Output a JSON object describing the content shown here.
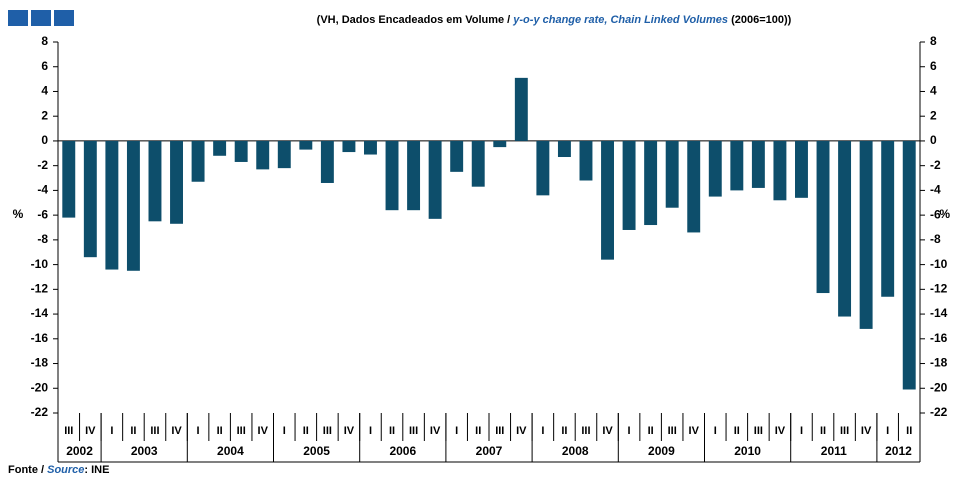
{
  "chart_data": {
    "type": "bar",
    "subtitle": {
      "part1": "(VH, Dados Encadeados em Volume / ",
      "part2": "y-o-y change rate, Chain Linked Volumes",
      "part3": " (2006=100))"
    },
    "y_label": "%",
    "groups": [
      {
        "label": "2002",
        "categories": [
          "III",
          "IV"
        ]
      },
      {
        "label": "2003",
        "categories": [
          "I",
          "II",
          "III",
          "IV"
        ]
      },
      {
        "label": "2004",
        "categories": [
          "I",
          "II",
          "III",
          "IV"
        ]
      },
      {
        "label": "2005",
        "categories": [
          "I",
          "II",
          "III",
          "IV"
        ]
      },
      {
        "label": "2006",
        "categories": [
          "I",
          "II",
          "III",
          "IV"
        ]
      },
      {
        "label": "2007",
        "categories": [
          "I",
          "II",
          "III",
          "IV"
        ]
      },
      {
        "label": "2008",
        "categories": [
          "I",
          "II",
          "III",
          "IV"
        ]
      },
      {
        "label": "2009",
        "categories": [
          "I",
          "II",
          "III",
          "IV"
        ]
      },
      {
        "label": "2010",
        "categories": [
          "I",
          "II",
          "III",
          "IV"
        ]
      },
      {
        "label": "2011",
        "categories": [
          "I",
          "II",
          "III",
          "IV"
        ]
      },
      {
        "label": "2012",
        "categories": [
          "I",
          "II"
        ]
      }
    ],
    "values": [
      -6.2,
      -9.4,
      -10.4,
      -10.5,
      -6.5,
      -6.7,
      -3.3,
      -1.2,
      -1.7,
      -2.3,
      -2.2,
      -0.7,
      -3.4,
      -0.9,
      -1.1,
      -5.6,
      -5.6,
      -6.3,
      -2.5,
      -3.7,
      -0.5,
      5.1,
      -4.4,
      -1.3,
      -3.2,
      -9.6,
      -7.2,
      -6.8,
      -5.4,
      -7.4,
      -4.5,
      -4.0,
      -3.8,
      -4.8,
      -4.6,
      -12.3,
      -14.2,
      -15.2,
      -12.6,
      -20.1
    ],
    "color": "#0d4e6b",
    "ylim": [
      -22,
      8
    ],
    "yticks": [
      -22,
      -20,
      -18,
      -16,
      -14,
      -12,
      -10,
      -8,
      -6,
      -4,
      -2,
      0,
      2,
      4,
      6,
      8
    ],
    "source": {
      "prefix": "Fonte / ",
      "word": "Source",
      "suffix": ": INE"
    }
  }
}
